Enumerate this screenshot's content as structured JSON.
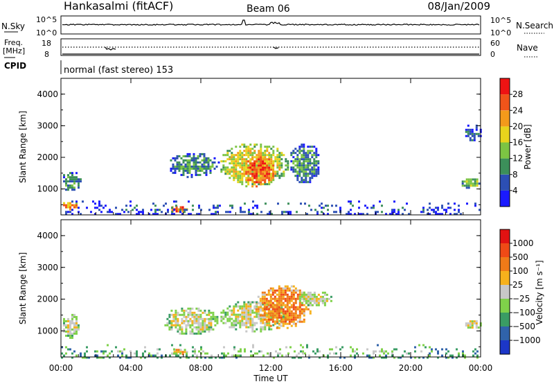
{
  "header": {
    "station": "Hankasalmi (fitACF)",
    "beam": "Beam 06",
    "date": "08/Jan/2009"
  },
  "housekeeping": {
    "nsky_label": "N.Sky",
    "nsky_ticks": [
      "10^5",
      "10^0"
    ],
    "nsearch_label": "N.Search",
    "nsearch_ticks": [
      "10^5",
      "10^0"
    ],
    "freq_label": "Freq.",
    "freq_unit": "[MHz]",
    "freq_ticks": [
      "18",
      "8"
    ],
    "nave_label": "Nave",
    "nave_ticks": [
      "60",
      "0"
    ],
    "cpid_label": "CPID",
    "cpid_value": "normal (fast stereo) 153"
  },
  "axes": {
    "time_ticks": [
      "00:00",
      "04:00",
      "08:00",
      "12:00",
      "16:00",
      "20:00",
      "00:00"
    ],
    "time_label": "Time UT",
    "range_label": "Slant Range [km]",
    "range_ticks": [
      "1000",
      "2000",
      "3000",
      "4000"
    ]
  },
  "colorbars": {
    "power": {
      "label": "Power [dB]",
      "ticks": [
        "4",
        "8",
        "12",
        "16",
        "20",
        "24",
        "28"
      ],
      "colors": [
        "#1a1aff",
        "#2c4fb4",
        "#3c8f5a",
        "#7cc443",
        "#e8d41c",
        "#f39a1b",
        "#f0541a",
        "#ee1313"
      ]
    },
    "velocity": {
      "label": "Velocity [m s⁻¹]",
      "ticks": [
        "1000",
        "500",
        "100",
        "25",
        "−25",
        "−100",
        "−500",
        "−1000"
      ],
      "colors": [
        "#1c37c8",
        "#3063aa",
        "#3a9c64",
        "#7fd14a",
        "#c8c8c8",
        "#f6b11c",
        "#f07a18",
        "#ef4a16",
        "#e11212"
      ]
    }
  },
  "chart_data": [
    {
      "type": "heatmap",
      "title": "Hankasalmi (fitACF)",
      "xlabel": "Time UT",
      "ylabel": "Slant Range [km]",
      "xlim": [
        0,
        24
      ],
      "ylim": [
        180,
        4500
      ],
      "colorbar": "Power [dB]",
      "regions": [
        {
          "t0": 0.0,
          "t1": 1.1,
          "r0": 950,
          "r1": 1600,
          "level": 2
        },
        {
          "t0": 0.0,
          "t1": 1.0,
          "r0": 350,
          "r1": 650,
          "level": 5
        },
        {
          "t0": 6.2,
          "t1": 7.2,
          "r0": 280,
          "r1": 520,
          "level": 6
        },
        {
          "t0": 6.0,
          "t1": 9.0,
          "r0": 1400,
          "r1": 2200,
          "level": 2
        },
        {
          "t0": 9.0,
          "t1": 13.0,
          "r0": 1100,
          "r1": 2500,
          "level": 4
        },
        {
          "t0": 10.3,
          "t1": 12.2,
          "r0": 1050,
          "r1": 2100,
          "level": 6
        },
        {
          "t0": 13.0,
          "t1": 14.8,
          "r0": 1200,
          "r1": 2500,
          "level": 2
        },
        {
          "t0": 22.8,
          "t1": 24.0,
          "r0": 1050,
          "r1": 1400,
          "level": 3
        },
        {
          "t0": 23.0,
          "t1": 24.0,
          "r0": 2500,
          "r1": 3100,
          "level": 1
        },
        {
          "t0": 0.0,
          "t1": 24.0,
          "r0": 180,
          "r1": 700,
          "level": 1
        }
      ]
    },
    {
      "type": "heatmap",
      "xlabel": "Time UT",
      "ylabel": "Slant Range [km]",
      "xlim": [
        0,
        24
      ],
      "ylim": [
        180,
        4500
      ],
      "colorbar": "Velocity [m s⁻¹]",
      "regions": [
        {
          "t0": 0.0,
          "t1": 1.0,
          "r0": 800,
          "r1": 1600,
          "level": 4
        },
        {
          "t0": 5.8,
          "t1": 9.0,
          "r0": 900,
          "r1": 1800,
          "level": 4
        },
        {
          "t0": 9.0,
          "t1": 13.0,
          "r0": 1000,
          "r1": 2000,
          "level": 4
        },
        {
          "t0": 11.0,
          "t1": 14.3,
          "r0": 1100,
          "r1": 2500,
          "level": 6
        },
        {
          "t0": 13.5,
          "t1": 15.5,
          "r0": 1800,
          "r1": 2300,
          "level": 4
        },
        {
          "t0": 6.2,
          "t1": 7.2,
          "r0": 250,
          "r1": 500,
          "level": 5
        },
        {
          "t0": 23.0,
          "t1": 24.0,
          "r0": 1050,
          "r1": 1400,
          "level": 4
        },
        {
          "t0": 0.0,
          "t1": 24.0,
          "r0": 180,
          "r1": 650,
          "level": 3
        }
      ]
    }
  ]
}
